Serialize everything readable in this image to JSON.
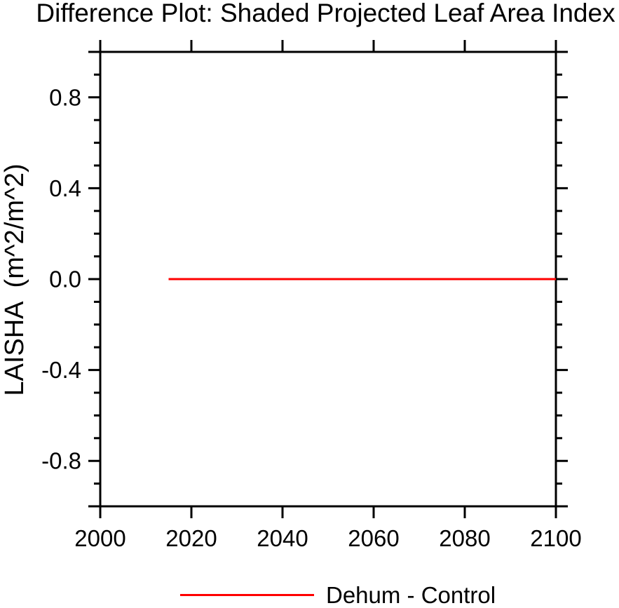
{
  "chart_data": {
    "type": "line",
    "title": "Difference Plot: Shaded Projected Leaf Area Index",
    "xlabel": "",
    "ylabel": "LAISHA  (m^2/m^2)",
    "xlim": [
      2000,
      2100
    ],
    "ylim": [
      -1.0,
      1.0
    ],
    "xticks": [
      {
        "value": 2000,
        "label": "2000"
      },
      {
        "value": 2020,
        "label": "2020"
      },
      {
        "value": 2040,
        "label": "2040"
      },
      {
        "value": 2060,
        "label": "2060"
      },
      {
        "value": 2080,
        "label": "2080"
      },
      {
        "value": 2100,
        "label": "2100"
      }
    ],
    "yticks": [
      {
        "value": 0.8,
        "label": "0.8"
      },
      {
        "value": 0.4,
        "label": "0.4"
      },
      {
        "value": 0.0,
        "label": "0.0"
      },
      {
        "value": -0.4,
        "label": "-0.4"
      },
      {
        "value": -0.8,
        "label": "-0.8"
      }
    ],
    "y_minor_step": 0.1,
    "x_minor_ticks": false,
    "grid": false,
    "tick_direction": "out",
    "frame": "box",
    "legend": {
      "position": "bottom-center",
      "entries": [
        {
          "label": "Dehum - Control",
          "color": "#ff0000"
        }
      ]
    },
    "series": [
      {
        "name": "Dehum - Control",
        "color": "#ff0000",
        "line_width": 3,
        "x": [
          2015,
          2100
        ],
        "y": [
          0.0,
          0.0
        ]
      }
    ]
  },
  "colors": {
    "background": "#ffffff",
    "axis": "#000000",
    "accent": "#ff0000"
  }
}
